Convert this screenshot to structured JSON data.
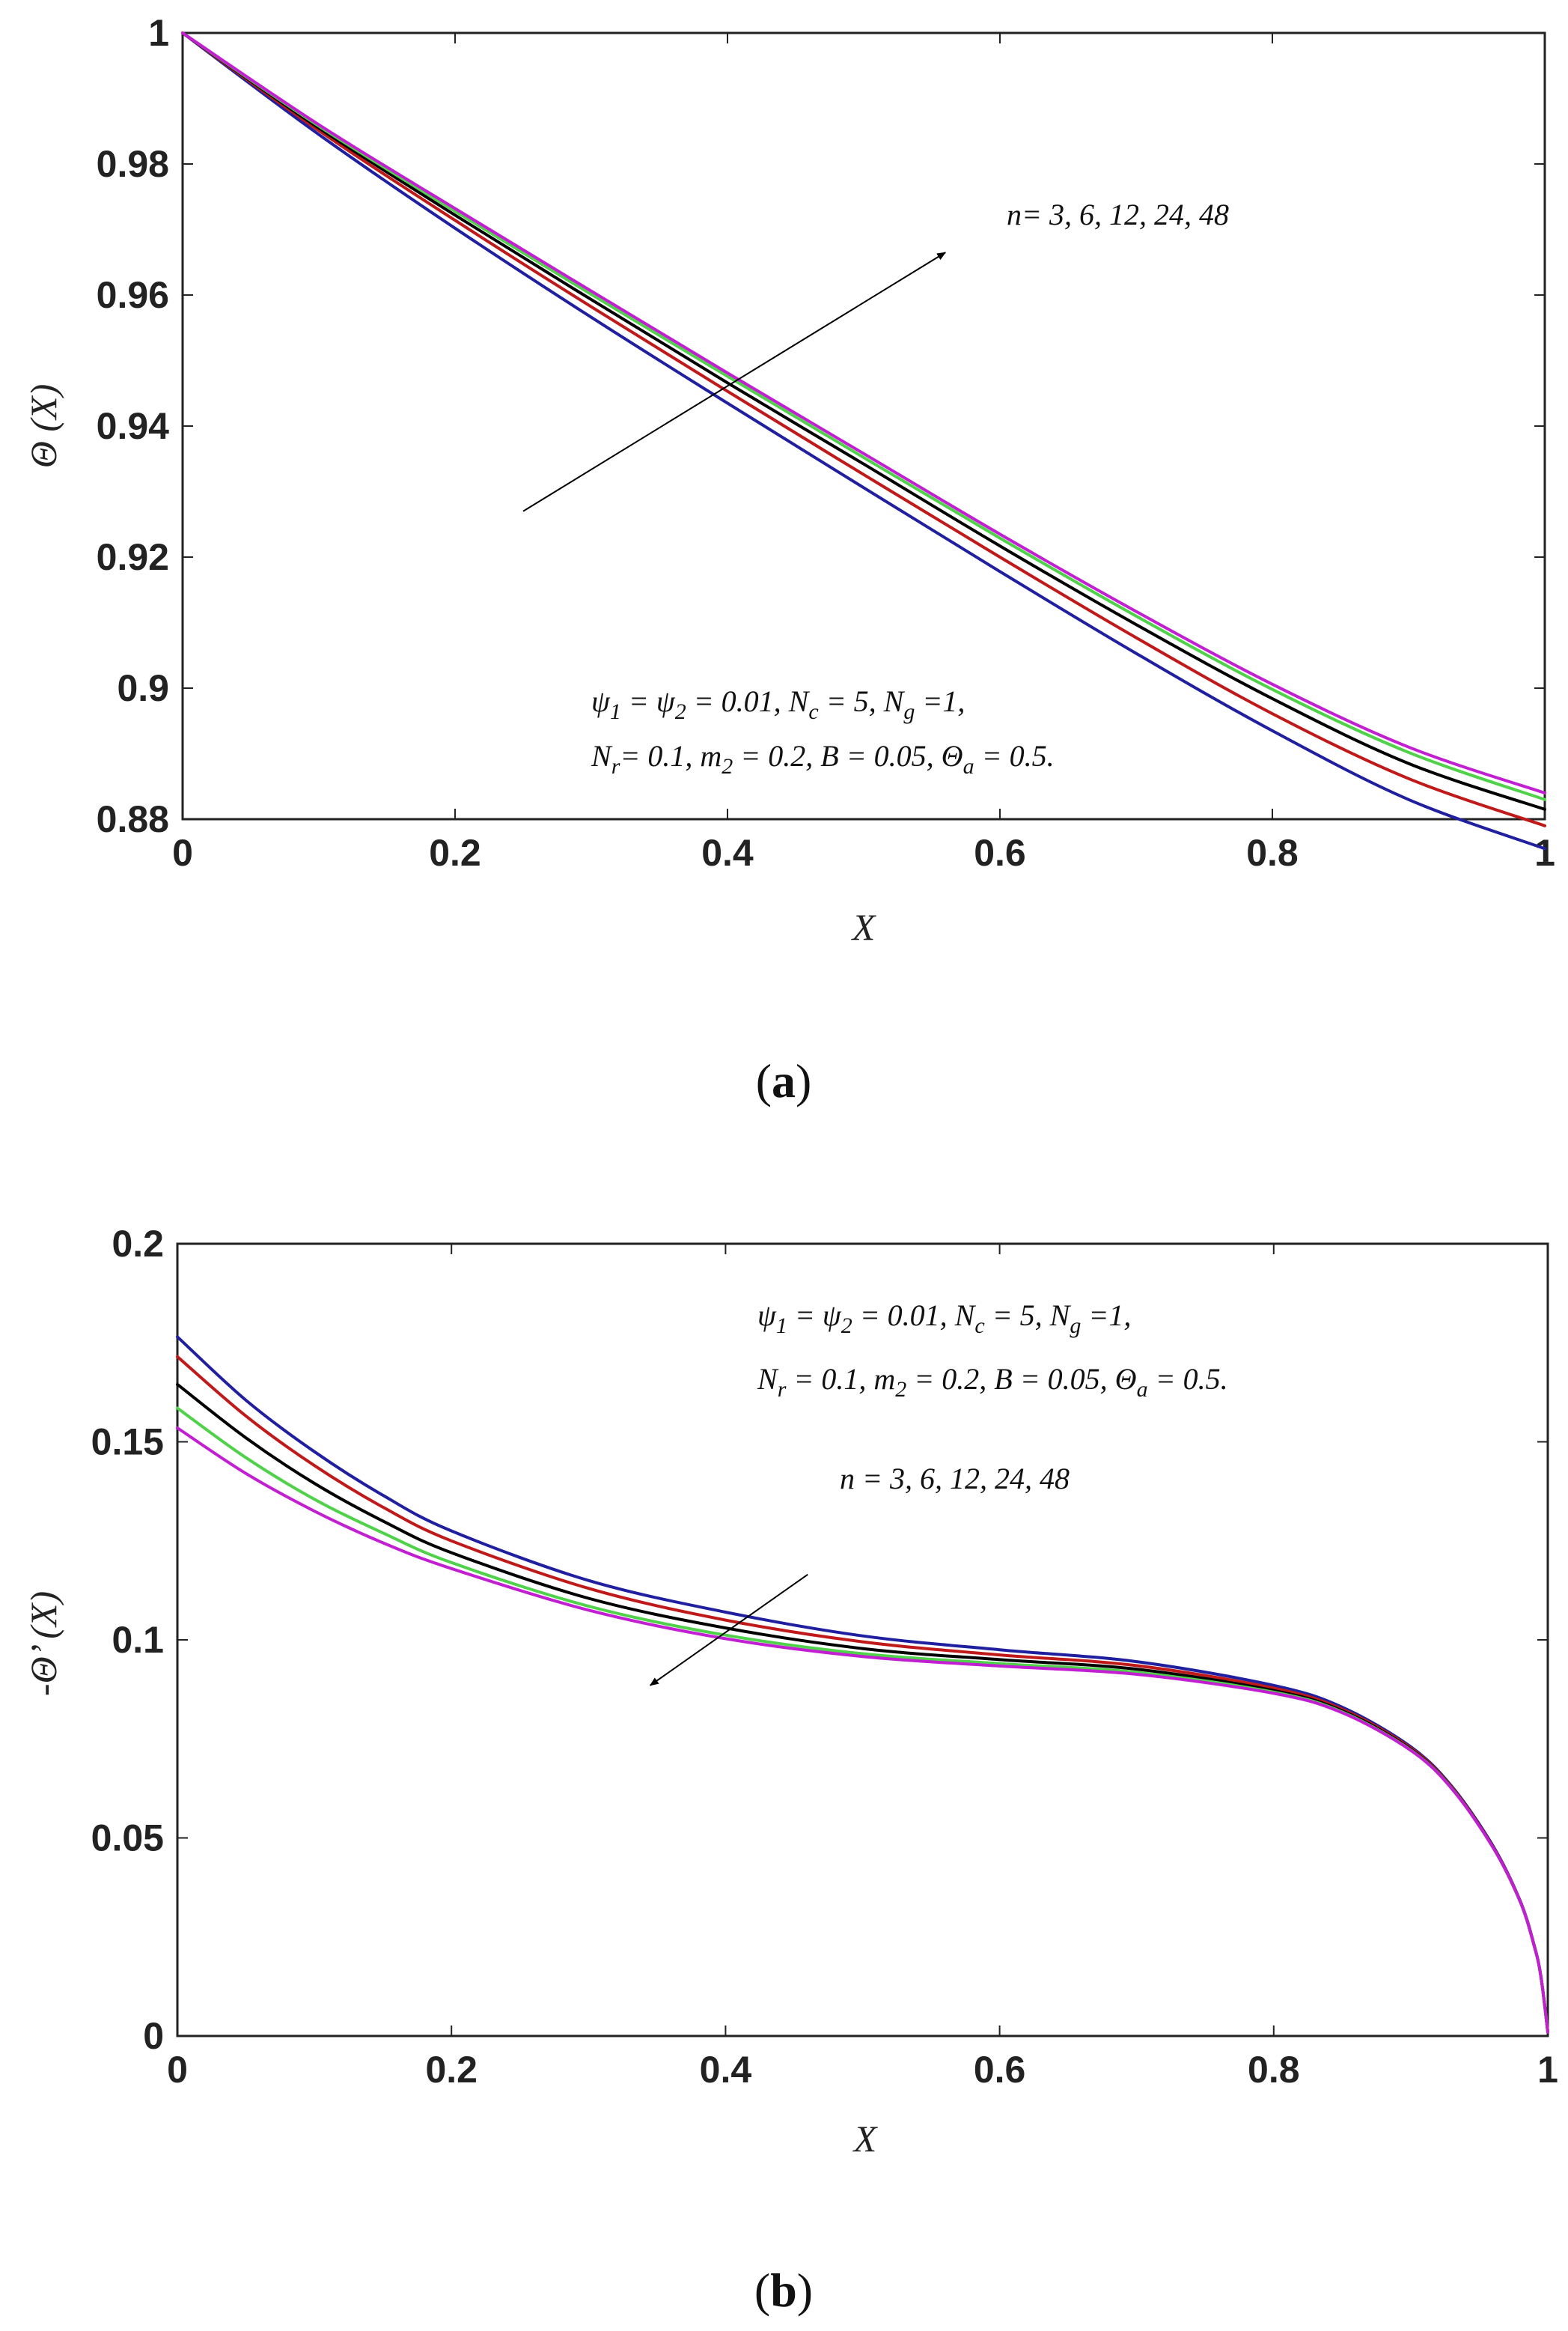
{
  "colors": {
    "n3": "#1f1fa0",
    "n6": "#c0191a",
    "n12": "#000000",
    "n24": "#4fd24a",
    "n48": "#c21fd2"
  },
  "chart_data": [
    {
      "id": "a",
      "panel_label_open": "(",
      "panel_label": "a",
      "panel_label_close": ")",
      "type": "line",
      "xlabel": "X",
      "ylabel": "Θ (X)",
      "xlim": [
        0,
        1
      ],
      "ylim": [
        0.88,
        1
      ],
      "xticks": [
        0,
        0.2,
        0.4,
        0.6,
        0.8,
        1
      ],
      "xtick_labels": [
        "0",
        "0.2",
        "0.4",
        "0.6",
        "0.8",
        "1"
      ],
      "yticks": [
        0.88,
        0.9,
        0.92,
        0.94,
        0.96,
        0.98,
        1
      ],
      "ytick_labels": [
        "0.88",
        "0.9",
        "0.92",
        "0.94",
        "0.96",
        "0.98",
        "1"
      ],
      "x": [
        0,
        0.1,
        0.2,
        0.3,
        0.4,
        0.5,
        0.6,
        0.7,
        0.8,
        0.9,
        1.0
      ],
      "series": [
        {
          "name": "n=3",
          "color_key": "n3",
          "values": [
            1.0,
            0.9845,
            0.9702,
            0.9566,
            0.9435,
            0.9306,
            0.9178,
            0.9053,
            0.8935,
            0.883,
            0.8755
          ]
        },
        {
          "name": "n=6",
          "color_key": "n6",
          "values": [
            1.0,
            0.9851,
            0.9714,
            0.9582,
            0.9453,
            0.9326,
            0.92,
            0.9077,
            0.8961,
            0.8862,
            0.879
          ]
        },
        {
          "name": "n=12",
          "color_key": "n12",
          "values": [
            1.0,
            0.9855,
            0.9722,
            0.9593,
            0.9466,
            0.9342,
            0.9217,
            0.9097,
            0.8984,
            0.8885,
            0.8815
          ]
        },
        {
          "name": "n=24",
          "color_key": "n24",
          "values": [
            1.0,
            0.9858,
            0.9728,
            0.9601,
            0.9476,
            0.9352,
            0.9229,
            0.911,
            0.8998,
            0.8902,
            0.883
          ]
        },
        {
          "name": "n=48",
          "color_key": "n48",
          "values": [
            1.0,
            0.986,
            0.9732,
            0.9606,
            0.9481,
            0.9358,
            0.9235,
            0.9117,
            0.9006,
            0.891,
            0.884
          ]
        }
      ],
      "annotations": {
        "n_label": "n= 3, 6, 12, 24, 48",
        "arrow_from": [
          0.25,
          0.927
        ],
        "arrow_to": [
          0.56,
          0.9665
        ],
        "params_line1": {
          "a": "ψ",
          "a_sub": "1",
          "b": " = ψ",
          "b_sub": "2",
          "c": " = 0.01, N",
          "c_sub": "c",
          "d": " = 5, N",
          "d_sub": "g",
          "e": " =1,"
        },
        "params_line2": {
          "a": "N",
          "a_sub": "r",
          "b": "= 0.1, m",
          "b_sub": "2",
          "c": " = 0.2, B = 0.05,  Θ",
          "c_sub": "a",
          "d": " = 0.5."
        }
      }
    },
    {
      "id": "b",
      "panel_label_open": "(",
      "panel_label": "b",
      "panel_label_close": ")",
      "type": "line",
      "xlabel": "X",
      "ylabel": "-Θ’ (X)",
      "xlim": [
        0,
        1
      ],
      "ylim": [
        0,
        0.2
      ],
      "xticks": [
        0,
        0.2,
        0.4,
        0.6,
        0.8,
        1
      ],
      "xtick_labels": [
        "0",
        "0.2",
        "0.4",
        "0.6",
        "0.8",
        "1"
      ],
      "yticks": [
        0,
        0.05,
        0.1,
        0.15,
        0.2
      ],
      "ytick_labels": [
        "0",
        "0.05",
        "0.1",
        "0.15",
        "0.2"
      ],
      "x": [
        0,
        0.05,
        0.1,
        0.15,
        0.2,
        0.3,
        0.4,
        0.5,
        0.6,
        0.7,
        0.8,
        0.85,
        0.9,
        0.93,
        0.96,
        0.98,
        0.99,
        0.995,
        1.0
      ],
      "series": [
        {
          "name": "n=3",
          "color_key": "n3",
          "values": [
            0.1765,
            0.1605,
            0.1475,
            0.1365,
            0.1275,
            0.115,
            0.107,
            0.101,
            0.0975,
            0.0945,
            0.0885,
            0.083,
            0.073,
            0.063,
            0.048,
            0.034,
            0.023,
            0.015,
            0.001
          ]
        },
        {
          "name": "n=6",
          "color_key": "n6",
          "values": [
            0.1715,
            0.1565,
            0.144,
            0.1335,
            0.125,
            0.113,
            0.105,
            0.0995,
            0.0962,
            0.0935,
            0.0878,
            0.0825,
            0.0727,
            0.0628,
            0.0478,
            0.0339,
            0.0229,
            0.015,
            0.001
          ]
        },
        {
          "name": "n=12",
          "color_key": "n12",
          "values": [
            0.1645,
            0.151,
            0.1395,
            0.13,
            0.122,
            0.1105,
            0.103,
            0.0978,
            0.095,
            0.0926,
            0.0872,
            0.0821,
            0.0724,
            0.0626,
            0.0477,
            0.0338,
            0.0228,
            0.015,
            0.001
          ]
        },
        {
          "name": "n=24",
          "color_key": "n24",
          "values": [
            0.1585,
            0.146,
            0.1355,
            0.127,
            0.1195,
            0.1085,
            0.1012,
            0.0965,
            0.094,
            0.0918,
            0.0868,
            0.0818,
            0.0722,
            0.0625,
            0.0476,
            0.0338,
            0.0228,
            0.015,
            0.001
          ]
        },
        {
          "name": "n=48",
          "color_key": "n48",
          "values": [
            0.1535,
            0.142,
            0.1325,
            0.1245,
            0.118,
            0.1075,
            0.1003,
            0.0958,
            0.0934,
            0.0913,
            0.0865,
            0.0816,
            0.0721,
            0.0624,
            0.0476,
            0.0338,
            0.0228,
            0.015,
            0.001
          ]
        }
      ],
      "annotations": {
        "n_label": "n = 3, 6, 12, 24, 48",
        "arrow_from": [
          0.46,
          0.1165
        ],
        "arrow_to": [
          0.345,
          0.0885
        ],
        "params_line1": {
          "a": "ψ",
          "a_sub": "1",
          "b": " = ψ",
          "b_sub": "2",
          "c": " = 0.01, N",
          "c_sub": "c",
          "d": " = 5, N",
          "d_sub": "g",
          "e": " =1,"
        },
        "params_line2": {
          "a": "N",
          "a_sub": "r",
          "b": " = 0.1, m",
          "b_sub": "2",
          "c": " = 0.2, B = 0.05,  Θ",
          "c_sub": "a",
          "d": " = 0.5."
        }
      }
    }
  ]
}
